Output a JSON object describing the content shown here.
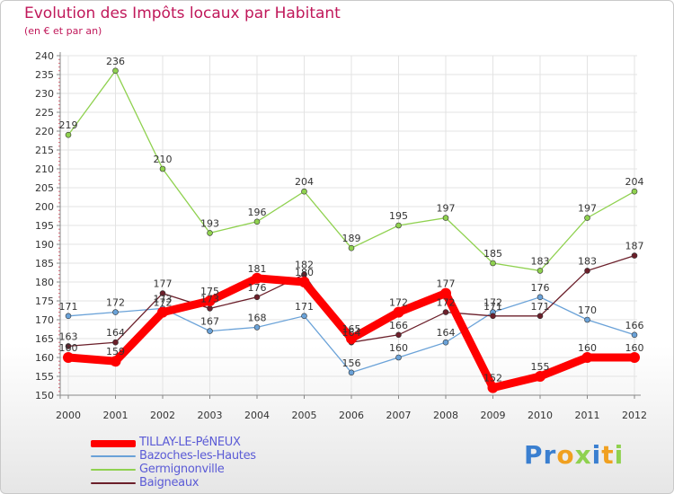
{
  "chart_data": {
    "type": "line",
    "title": "Evolution des Impôts locaux par Habitant",
    "subtitle": "(en € et par an)",
    "xlabel": "",
    "ylabel": "",
    "ylim": [
      150,
      240
    ],
    "ytick_step": 5,
    "categories": [
      "2000",
      "2001",
      "2002",
      "2003",
      "2004",
      "2005",
      "2006",
      "2007",
      "2008",
      "2009",
      "2010",
      "2011",
      "2012"
    ],
    "series": [
      {
        "name": "TILLAY-LE-PéNEUX",
        "color": "#ff0000",
        "values": [
          160,
          159,
          172,
          175,
          181,
          180,
          165,
          172,
          177,
          152,
          155,
          160,
          160
        ],
        "labels": [
          "160",
          "159",
          "172",
          "175",
          "181",
          "180",
          "165",
          "172",
          "177",
          "152",
          "155",
          "160",
          "160"
        ]
      },
      {
        "name": "Bazoches-les-Hautes",
        "color": "#6aa2d8",
        "values": [
          171,
          172,
          173,
          167,
          168,
          171,
          156,
          160,
          164,
          172,
          176,
          170,
          166
        ],
        "labels": [
          "171",
          "172",
          "173",
          "167",
          "168",
          "171",
          "156",
          "160",
          "164",
          "172",
          "176",
          "170",
          "166"
        ]
      },
      {
        "name": "Germignonville",
        "color": "#8fd14f",
        "values": [
          219,
          236,
          210,
          193,
          196,
          204,
          189,
          195,
          197,
          185,
          183,
          197,
          204
        ],
        "labels": [
          "219",
          "236",
          "210",
          "193",
          "196",
          "204",
          "189",
          "195",
          "197",
          "185",
          "183",
          "197",
          "204"
        ]
      },
      {
        "name": "Baigneaux",
        "color": "#6b1f2a",
        "values": [
          163,
          164,
          177,
          173,
          176,
          182,
          164,
          166,
          172,
          171,
          171,
          183,
          187
        ],
        "labels": [
          "163",
          "164",
          "177",
          "173",
          "176",
          "182",
          "164",
          "166",
          "172",
          "171",
          "171",
          "183",
          "187"
        ]
      }
    ]
  },
  "brand": {
    "letters": [
      {
        "char": "P",
        "color": "#3a7fd0"
      },
      {
        "char": "r",
        "color": "#3a7fd0"
      },
      {
        "char": "o",
        "color": "#f0a020"
      },
      {
        "char": "x",
        "color": "#8fd14f"
      },
      {
        "char": "i",
        "color": "#3a7fd0"
      },
      {
        "char": "t",
        "color": "#f0a020"
      },
      {
        "char": "i",
        "color": "#8fd14f"
      }
    ]
  }
}
